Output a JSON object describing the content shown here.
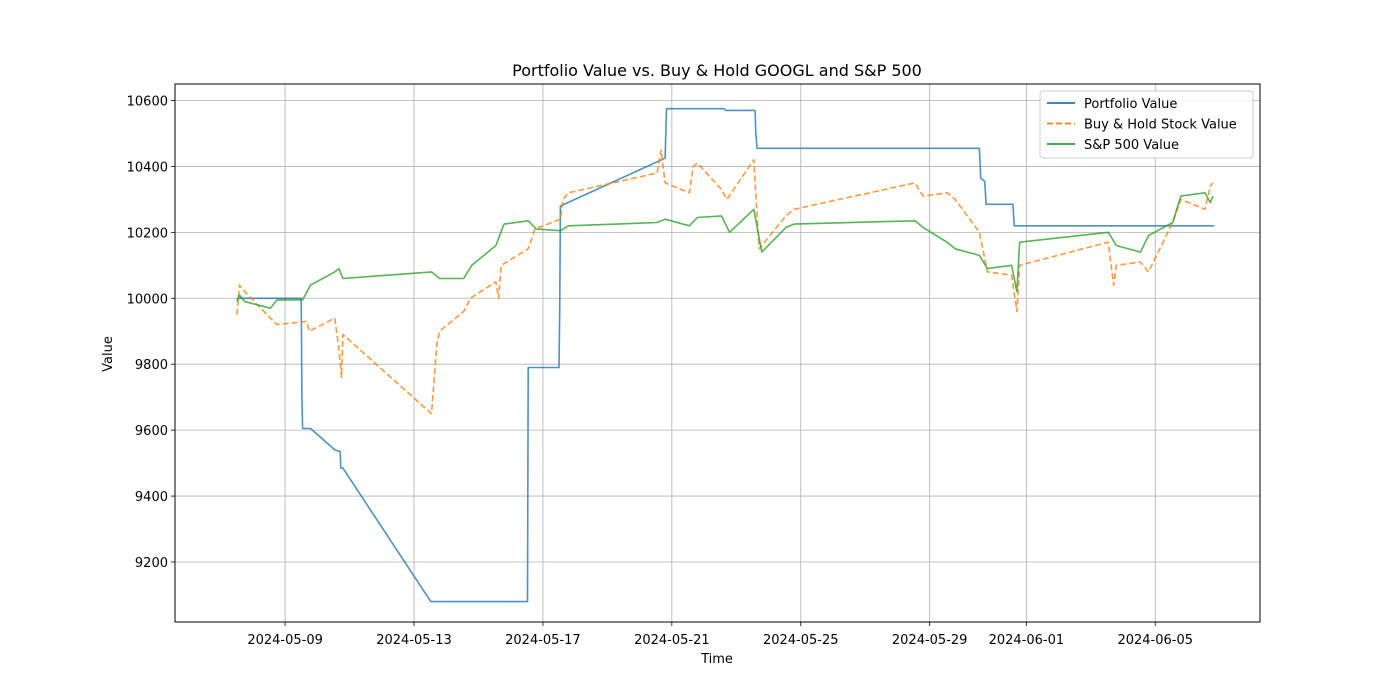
{
  "chart_data": {
    "type": "line",
    "title": "Portfolio Value vs. Buy & Hold GOOGL and S&P 500",
    "xlabel": "Time",
    "ylabel": "Value",
    "x_is_date": true,
    "xlim": [
      "2024-05-05T14:00",
      "2024-06-08T06:00"
    ],
    "ylim": [
      9018,
      10650
    ],
    "xticks": [
      "2024-05-09",
      "2024-05-13",
      "2024-05-17",
      "2024-05-21",
      "2024-05-25",
      "2024-05-29",
      "2024-06-01",
      "2024-06-05"
    ],
    "yticks": [
      9200,
      9400,
      9600,
      9800,
      10000,
      10200,
      10400,
      10600
    ],
    "grid": true,
    "legend_position": "top-right",
    "series": [
      {
        "name": "Portfolio Value",
        "color": "#1f77b4",
        "style": "solid",
        "points": [
          [
            "2024-05-07T12:00",
            10000
          ],
          [
            "2024-05-09T12:00",
            10000
          ],
          [
            "2024-05-09T12:30",
            9700
          ],
          [
            "2024-05-09T13:00",
            9605
          ],
          [
            "2024-05-09T19:00",
            9605
          ],
          [
            "2024-05-10T13:00",
            9540
          ],
          [
            "2024-05-10T17:00",
            9535
          ],
          [
            "2024-05-10T17:30",
            9485
          ],
          [
            "2024-05-10T19:00",
            9485
          ],
          [
            "2024-05-13T12:30",
            9080
          ],
          [
            "2024-05-16T12:30",
            9080
          ],
          [
            "2024-05-16T13:00",
            9790
          ],
          [
            "2024-05-17T12:00",
            9790
          ],
          [
            "2024-05-17T12:30",
            9960
          ],
          [
            "2024-05-17T13:00",
            10280
          ],
          [
            "2024-05-20T19:00",
            10425
          ],
          [
            "2024-05-20T20:00",
            10575
          ],
          [
            "2024-05-22T15:00",
            10575
          ],
          [
            "2024-05-22T16:00",
            10570
          ],
          [
            "2024-05-23T14:00",
            10570
          ],
          [
            "2024-05-23T14:30",
            10500
          ],
          [
            "2024-05-23T15:30",
            10455
          ],
          [
            "2024-05-30T13:00",
            10455
          ],
          [
            "2024-05-30T14:00",
            10365
          ],
          [
            "2024-05-30T17:00",
            10355
          ],
          [
            "2024-05-30T18:00",
            10285
          ],
          [
            "2024-05-31T14:00",
            10285
          ],
          [
            "2024-05-31T15:00",
            10220
          ],
          [
            "2024-06-06T20:00",
            10220
          ]
        ]
      },
      {
        "name": "Buy & Hold Stock Value",
        "color": "#ff7f0e",
        "style": "dashed",
        "points": [
          [
            "2024-05-07T12:00",
            9950
          ],
          [
            "2024-05-07T14:00",
            10040
          ],
          [
            "2024-05-07T18:00",
            10020
          ],
          [
            "2024-05-08T13:00",
            9940
          ],
          [
            "2024-05-08T18:00",
            9920
          ],
          [
            "2024-05-09T16:00",
            9930
          ],
          [
            "2024-05-09T18:00",
            9900
          ],
          [
            "2024-05-10T13:00",
            9940
          ],
          [
            "2024-05-10T16:00",
            9850
          ],
          [
            "2024-05-10T18:00",
            9760
          ],
          [
            "2024-05-10T19:00",
            9890
          ],
          [
            "2024-05-13T13:00",
            9650
          ],
          [
            "2024-05-13T17:00",
            9860
          ],
          [
            "2024-05-13T19:00",
            9900
          ],
          [
            "2024-05-14T13:00",
            9960
          ],
          [
            "2024-05-14T18:00",
            10000
          ],
          [
            "2024-05-15T13:00",
            10050
          ],
          [
            "2024-05-15T15:00",
            10000
          ],
          [
            "2024-05-15T17:00",
            10100
          ],
          [
            "2024-05-16T13:00",
            10150
          ],
          [
            "2024-05-16T18:00",
            10210
          ],
          [
            "2024-05-17T13:00",
            10240
          ],
          [
            "2024-05-17T15:00",
            10300
          ],
          [
            "2024-05-17T19:00",
            10320
          ],
          [
            "2024-05-20T13:00",
            10380
          ],
          [
            "2024-05-20T16:00",
            10450
          ],
          [
            "2024-05-20T19:00",
            10350
          ],
          [
            "2024-05-21T13:00",
            10320
          ],
          [
            "2024-05-21T16:00",
            10400
          ],
          [
            "2024-05-21T19:00",
            10410
          ],
          [
            "2024-05-22T13:00",
            10330
          ],
          [
            "2024-05-22T17:00",
            10300
          ],
          [
            "2024-05-23T13:00",
            10420
          ],
          [
            "2024-05-23T17:00",
            10150
          ],
          [
            "2024-05-24T13:00",
            10250
          ],
          [
            "2024-05-24T19:00",
            10270
          ],
          [
            "2024-05-28T13:00",
            10350
          ],
          [
            "2024-05-28T19:00",
            10310
          ],
          [
            "2024-05-29T13:00",
            10320
          ],
          [
            "2024-05-29T19:00",
            10300
          ],
          [
            "2024-05-30T13:00",
            10200
          ],
          [
            "2024-05-30T19:00",
            10080
          ],
          [
            "2024-05-31T13:00",
            10070
          ],
          [
            "2024-05-31T17:00",
            9960
          ],
          [
            "2024-05-31T19:00",
            10100
          ],
          [
            "2024-06-03T13:00",
            10170
          ],
          [
            "2024-06-03T17:00",
            10040
          ],
          [
            "2024-06-03T19:00",
            10100
          ],
          [
            "2024-06-04T13:00",
            10110
          ],
          [
            "2024-06-04T19:00",
            10080
          ],
          [
            "2024-06-05T13:00",
            10230
          ],
          [
            "2024-06-05T19:00",
            10300
          ],
          [
            "2024-06-06T13:00",
            10270
          ],
          [
            "2024-06-06T17:00",
            10340
          ],
          [
            "2024-06-06T19:00",
            10350
          ]
        ]
      },
      {
        "name": "S&P 500 Value",
        "color": "#2ca02c",
        "style": "solid",
        "points": [
          [
            "2024-05-07T12:00",
            9990
          ],
          [
            "2024-05-07T14:00",
            10010
          ],
          [
            "2024-05-07T18:00",
            9990
          ],
          [
            "2024-05-08T13:00",
            9970
          ],
          [
            "2024-05-08T18:00",
            9995
          ],
          [
            "2024-05-09T13:00",
            9995
          ],
          [
            "2024-05-09T19:00",
            10040
          ],
          [
            "2024-05-10T13:00",
            10080
          ],
          [
            "2024-05-10T16:00",
            10090
          ],
          [
            "2024-05-10T19:00",
            10060
          ],
          [
            "2024-05-13T13:00",
            10080
          ],
          [
            "2024-05-13T19:00",
            10060
          ],
          [
            "2024-05-14T13:00",
            10060
          ],
          [
            "2024-05-14T19:00",
            10100
          ],
          [
            "2024-05-15T13:00",
            10160
          ],
          [
            "2024-05-15T19:00",
            10225
          ],
          [
            "2024-05-16T13:00",
            10235
          ],
          [
            "2024-05-16T19:00",
            10210
          ],
          [
            "2024-05-17T13:00",
            10205
          ],
          [
            "2024-05-17T19:00",
            10220
          ],
          [
            "2024-05-20T13:00",
            10230
          ],
          [
            "2024-05-20T19:00",
            10240
          ],
          [
            "2024-05-21T13:00",
            10220
          ],
          [
            "2024-05-21T19:00",
            10245
          ],
          [
            "2024-05-22T13:00",
            10250
          ],
          [
            "2024-05-22T19:00",
            10200
          ],
          [
            "2024-05-23T13:00",
            10270
          ],
          [
            "2024-05-23T19:00",
            10140
          ],
          [
            "2024-05-24T13:00",
            10215
          ],
          [
            "2024-05-24T19:00",
            10225
          ],
          [
            "2024-05-28T13:00",
            10235
          ],
          [
            "2024-05-28T19:00",
            10215
          ],
          [
            "2024-05-29T13:00",
            10170
          ],
          [
            "2024-05-29T19:00",
            10150
          ],
          [
            "2024-05-30T13:00",
            10130
          ],
          [
            "2024-05-30T19:00",
            10090
          ],
          [
            "2024-05-31T13:00",
            10100
          ],
          [
            "2024-05-31T17:00",
            10020
          ],
          [
            "2024-05-31T19:00",
            10170
          ],
          [
            "2024-06-03T13:00",
            10200
          ],
          [
            "2024-06-03T19:00",
            10160
          ],
          [
            "2024-06-04T13:00",
            10140
          ],
          [
            "2024-06-04T19:00",
            10190
          ],
          [
            "2024-06-05T13:00",
            10230
          ],
          [
            "2024-06-05T19:00",
            10310
          ],
          [
            "2024-06-06T13:00",
            10320
          ],
          [
            "2024-06-06T17:00",
            10290
          ],
          [
            "2024-06-06T19:00",
            10310
          ]
        ]
      }
    ]
  }
}
